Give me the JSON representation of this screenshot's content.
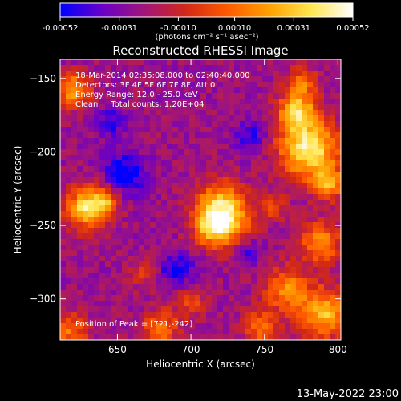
{
  "colorbar": {
    "tick_labels": [
      "-0.00052",
      "-0.00031",
      "-0.00010",
      "0.00010",
      "0.00031",
      "0.00052"
    ],
    "tick_values": [
      -0.00052,
      -0.00031,
      -0.0001,
      0.0001,
      0.00031,
      0.00052
    ],
    "range": [
      -0.00052,
      0.00052
    ],
    "units_label": "(photons cm⁻² s⁻¹ asec⁻²)",
    "colors": [
      "#0000ff",
      "#6a00c8",
      "#a0147c",
      "#d22818",
      "#ff5a00",
      "#ffa000",
      "#ffe650",
      "#ffffff"
    ]
  },
  "title": "Reconstructed RHESSI Image",
  "info": {
    "line1": "18-Mar-2014 02:35:08.000 to 02:40:40.000",
    "line2": "Detectors: 3F 4F 5F 6F 7F 8F, Att 0",
    "line3": "Energy Range: 12.0 - 25.0 keV",
    "line4": "Clean     Total counts: 1.20E+04"
  },
  "peak_text": "Position of Peak = [721,-242]",
  "footer_date": "13-May-2022 23:00",
  "chart_data": {
    "type": "heatmap",
    "title": "Reconstructed RHESSI Image",
    "xlabel": "Heliocentric X (arcsec)",
    "ylabel": "Heliocentric Y (arcsec)",
    "xlim": [
      611,
      802
    ],
    "ylim": [
      -328,
      -137
    ],
    "x_ticks": [
      650,
      700,
      750,
      800
    ],
    "x_tick_labels": [
      "650",
      "700",
      "750",
      "800"
    ],
    "y_ticks": [
      -150,
      -200,
      -250,
      -300
    ],
    "y_tick_labels": [
      "−150",
      "−200",
      "−250",
      "−300"
    ],
    "peak_position": [
      721,
      -242
    ],
    "grid": false,
    "sources": [
      {
        "x": 721,
        "y": -242,
        "sigma": 13,
        "amp": 1.0
      },
      {
        "x": 716,
        "y": -254,
        "sigma": 8,
        "amp": 0.35
      },
      {
        "x": 630,
        "y": -238,
        "sigma": 10,
        "amp": 0.85
      },
      {
        "x": 642,
        "y": -233,
        "sigma": 6,
        "amp": 0.4
      },
      {
        "x": 620,
        "y": -158,
        "sigma": 8,
        "amp": 0.65
      },
      {
        "x": 772,
        "y": -172,
        "sigma": 9,
        "amp": 0.7
      },
      {
        "x": 780,
        "y": -198,
        "sigma": 14,
        "amp": 0.9
      },
      {
        "x": 794,
        "y": -222,
        "sigma": 8,
        "amp": 0.55
      },
      {
        "x": 776,
        "y": -152,
        "sigma": 7,
        "amp": 0.45
      },
      {
        "x": 788,
        "y": -262,
        "sigma": 10,
        "amp": 0.55
      },
      {
        "x": 765,
        "y": -293,
        "sigma": 10,
        "amp": 0.55
      },
      {
        "x": 790,
        "y": -310,
        "sigma": 12,
        "amp": 0.7
      },
      {
        "x": 748,
        "y": -320,
        "sigma": 9,
        "amp": 0.45
      },
      {
        "x": 680,
        "y": -320,
        "sigma": 9,
        "amp": 0.45
      },
      {
        "x": 700,
        "y": -302,
        "sigma": 7,
        "amp": 0.35
      },
      {
        "x": 618,
        "y": -322,
        "sigma": 9,
        "amp": 0.45
      },
      {
        "x": 668,
        "y": -282,
        "sigma": 7,
        "amp": 0.28
      },
      {
        "x": 757,
        "y": -238,
        "sigma": 6,
        "amp": 0.3
      }
    ],
    "negative_sources": [
      {
        "x": 655,
        "y": -215,
        "sigma": 10,
        "amp": 0.45
      },
      {
        "x": 690,
        "y": -280,
        "sigma": 9,
        "amp": 0.35
      },
      {
        "x": 740,
        "y": -190,
        "sigma": 8,
        "amp": 0.3
      },
      {
        "x": 645,
        "y": -180,
        "sigma": 7,
        "amp": 0.3
      },
      {
        "x": 740,
        "y": -268,
        "sigma": 6,
        "amp": 0.25
      }
    ]
  }
}
